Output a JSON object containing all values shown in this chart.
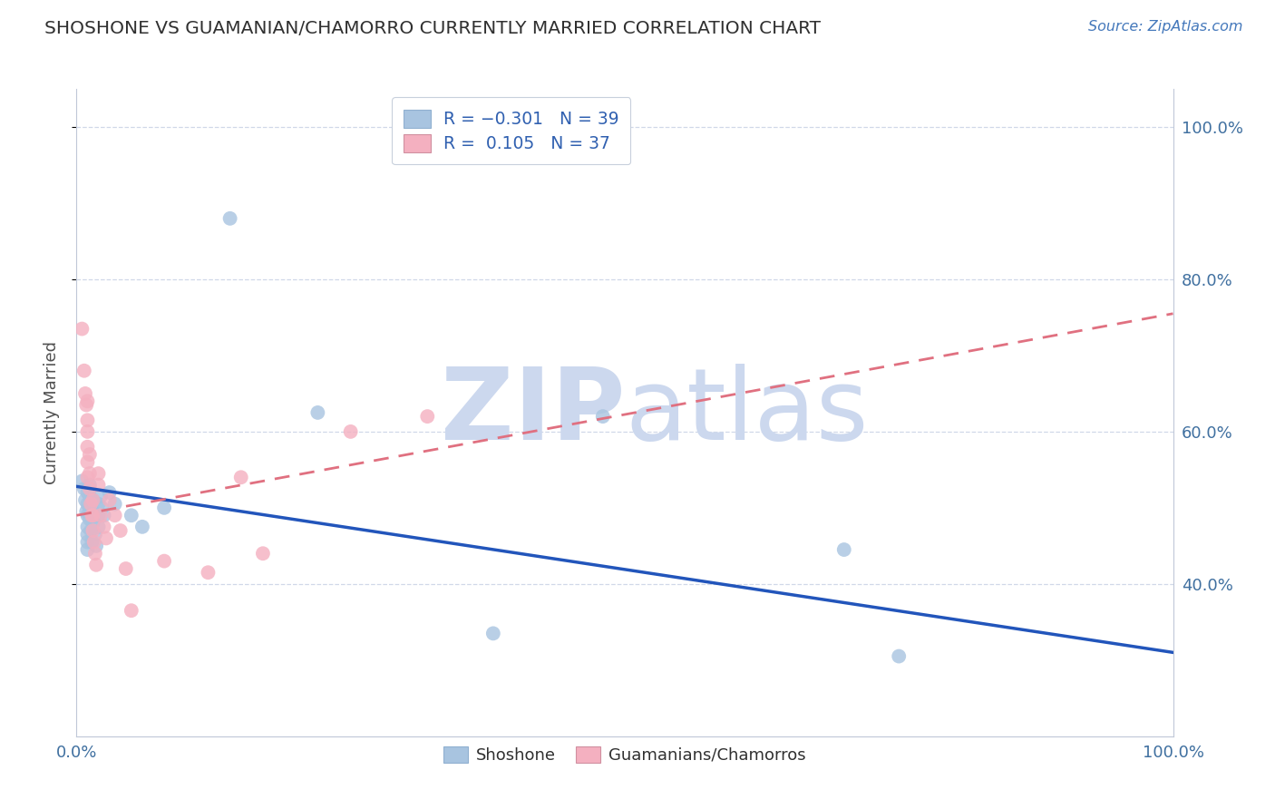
{
  "title": "SHOSHONE VS GUAMANIAN/CHAMORRO CURRENTLY MARRIED CORRELATION CHART",
  "source_text": "Source: ZipAtlas.com",
  "ylabel": "Currently Married",
  "xlim": [
    0,
    1.0
  ],
  "ylim": [
    0.2,
    1.05
  ],
  "yticks": [
    0.4,
    0.6,
    0.8,
    1.0
  ],
  "ytick_labels": [
    "40.0%",
    "60.0%",
    "80.0%",
    "100.0%"
  ],
  "xtick_labels": [
    "0.0%",
    "100.0%"
  ],
  "shoshone_scatter": [
    [
      0.005,
      0.535
    ],
    [
      0.007,
      0.525
    ],
    [
      0.008,
      0.51
    ],
    [
      0.009,
      0.495
    ],
    [
      0.01,
      0.52
    ],
    [
      0.01,
      0.505
    ],
    [
      0.01,
      0.49
    ],
    [
      0.01,
      0.475
    ],
    [
      0.01,
      0.465
    ],
    [
      0.01,
      0.455
    ],
    [
      0.01,
      0.445
    ],
    [
      0.012,
      0.53
    ],
    [
      0.012,
      0.515
    ],
    [
      0.012,
      0.5
    ],
    [
      0.012,
      0.485
    ],
    [
      0.013,
      0.47
    ],
    [
      0.014,
      0.455
    ],
    [
      0.015,
      0.51
    ],
    [
      0.015,
      0.495
    ],
    [
      0.015,
      0.48
    ],
    [
      0.017,
      0.465
    ],
    [
      0.018,
      0.45
    ],
    [
      0.02,
      0.505
    ],
    [
      0.02,
      0.49
    ],
    [
      0.02,
      0.475
    ],
    [
      0.022,
      0.515
    ],
    [
      0.023,
      0.5
    ],
    [
      0.025,
      0.49
    ],
    [
      0.03,
      0.52
    ],
    [
      0.035,
      0.505
    ],
    [
      0.05,
      0.49
    ],
    [
      0.06,
      0.475
    ],
    [
      0.08,
      0.5
    ],
    [
      0.14,
      0.88
    ],
    [
      0.22,
      0.625
    ],
    [
      0.38,
      0.335
    ],
    [
      0.48,
      0.62
    ],
    [
      0.7,
      0.445
    ],
    [
      0.75,
      0.305
    ]
  ],
  "guamanian_scatter": [
    [
      0.005,
      0.735
    ],
    [
      0.007,
      0.68
    ],
    [
      0.008,
      0.65
    ],
    [
      0.009,
      0.635
    ],
    [
      0.01,
      0.64
    ],
    [
      0.01,
      0.615
    ],
    [
      0.01,
      0.6
    ],
    [
      0.01,
      0.58
    ],
    [
      0.01,
      0.56
    ],
    [
      0.01,
      0.54
    ],
    [
      0.012,
      0.57
    ],
    [
      0.012,
      0.545
    ],
    [
      0.012,
      0.525
    ],
    [
      0.013,
      0.505
    ],
    [
      0.014,
      0.49
    ],
    [
      0.015,
      0.51
    ],
    [
      0.015,
      0.49
    ],
    [
      0.015,
      0.47
    ],
    [
      0.016,
      0.455
    ],
    [
      0.017,
      0.44
    ],
    [
      0.018,
      0.425
    ],
    [
      0.02,
      0.545
    ],
    [
      0.02,
      0.53
    ],
    [
      0.022,
      0.49
    ],
    [
      0.025,
      0.475
    ],
    [
      0.027,
      0.46
    ],
    [
      0.03,
      0.51
    ],
    [
      0.035,
      0.49
    ],
    [
      0.04,
      0.47
    ],
    [
      0.045,
      0.42
    ],
    [
      0.05,
      0.365
    ],
    [
      0.08,
      0.43
    ],
    [
      0.12,
      0.415
    ],
    [
      0.15,
      0.54
    ],
    [
      0.17,
      0.44
    ],
    [
      0.25,
      0.6
    ],
    [
      0.32,
      0.62
    ]
  ],
  "shoshone_line": {
    "x0": 0.0,
    "y0": 0.528,
    "x1": 1.0,
    "y1": 0.31
  },
  "guamanian_line": {
    "x0": 0.0,
    "y0": 0.49,
    "x1": 1.0,
    "y1": 0.755
  },
  "shoshone_line_color": "#2255bb",
  "guamanian_line_color": "#e07080",
  "scatter_blue": "#a8c4e0",
  "scatter_pink": "#f4b0c0",
  "background_color": "#ffffff",
  "grid_color": "#d0d8e8",
  "watermark_zip": "ZIP",
  "watermark_atlas": "atlas",
  "watermark_color": "#ccd8ee"
}
